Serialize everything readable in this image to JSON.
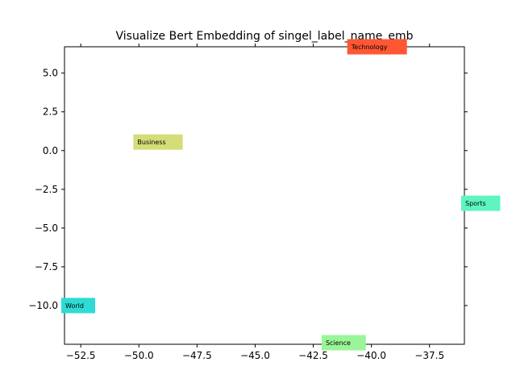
{
  "chart_data": {
    "type": "scatter",
    "title": "Visualize Bert Embedding of singel_label_name_emb",
    "xlabel": "",
    "ylabel": "",
    "xlim": [
      -53.2,
      -36.0
    ],
    "ylim": [
      -12.5,
      6.7
    ],
    "xticks": [
      -52.5,
      -50.0,
      -47.5,
      -45.0,
      -42.5,
      -40.0,
      -37.5
    ],
    "yticks": [
      5.0,
      2.5,
      0.0,
      -2.5,
      -5.0,
      -7.5,
      -10.0
    ],
    "xtick_labels": [
      "−52.5",
      "−50.0",
      "−47.5",
      "−45.0",
      "−42.5",
      "−40.0",
      "−37.5"
    ],
    "ytick_labels": [
      "5.0",
      "2.5",
      "0.0",
      "−2.5",
      "−5.0",
      "−7.5",
      "−10.0"
    ],
    "grid": false,
    "points": [
      {
        "label": "Technology",
        "x": -40.9,
        "y": 6.7,
        "color": "#ff5733"
      },
      {
        "label": "Business",
        "x": -50.1,
        "y": 0.55,
        "color": "#d4dd77"
      },
      {
        "label": "Sports",
        "x": -36.0,
        "y": -3.4,
        "color": "#5ef5be"
      },
      {
        "label": "World",
        "x": -53.2,
        "y": -10.0,
        "color": "#2edbd5"
      },
      {
        "label": "Science",
        "x": -42.0,
        "y": -12.4,
        "color": "#99f598"
      }
    ]
  }
}
